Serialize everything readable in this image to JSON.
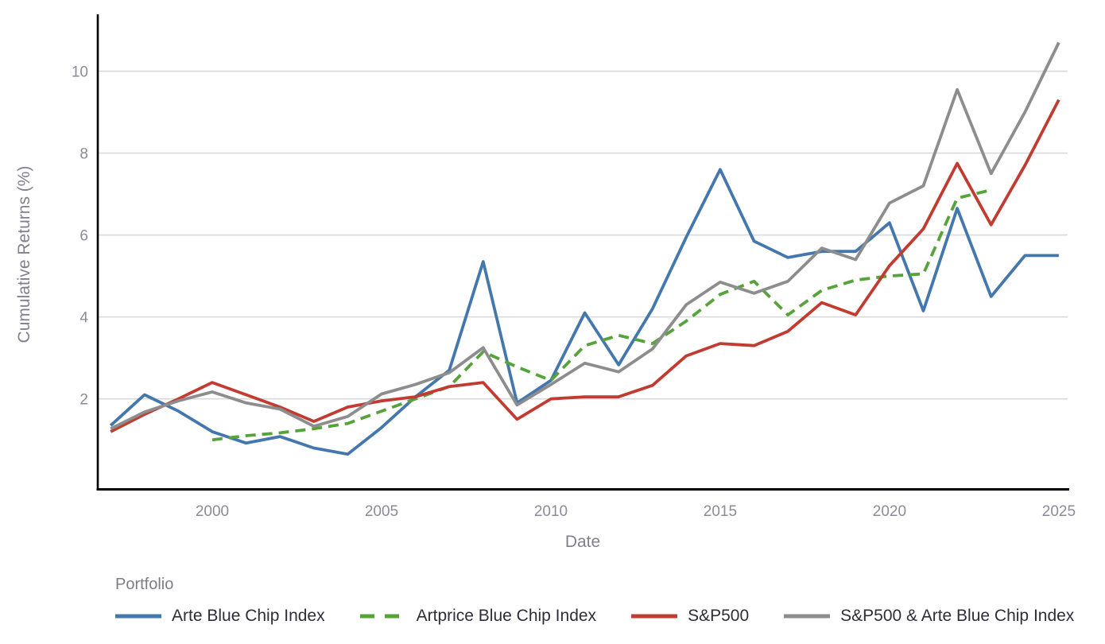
{
  "chart_data": {
    "type": "line",
    "title": "",
    "xlabel": "Date",
    "ylabel": "Cumulative Returns (%)",
    "legend_title": "Portfolio",
    "legend_position": "bottom-left",
    "grid": "horizontal",
    "xlim": [
      1996.62,
      2025.26
    ],
    "ylim": [
      -0.2,
      11.35
    ],
    "x_ticks": [
      2000,
      2005,
      2010,
      2015,
      2020,
      2025
    ],
    "y_ticks": [
      2,
      4,
      6,
      8,
      10
    ],
    "x": [
      1997,
      1998,
      1999,
      2000,
      2001,
      2002,
      2003,
      2004,
      2005,
      2006,
      2007,
      2008,
      2009,
      2010,
      2011,
      2012,
      2013,
      2014,
      2015,
      2016,
      2017,
      2018,
      2019,
      2020,
      2021,
      2022,
      2023,
      2024,
      2025
    ],
    "series": [
      {
        "name": "Arte Blue Chip Index",
        "color": "#4478ad",
        "dash": "solid",
        "values": [
          1.35,
          2.1,
          1.7,
          1.2,
          0.92,
          1.08,
          0.8,
          0.65,
          1.3,
          2.05,
          2.7,
          5.35,
          1.9,
          2.45,
          4.1,
          2.83,
          4.2,
          5.95,
          7.6,
          5.85,
          5.45,
          5.6,
          5.6,
          6.3,
          4.15,
          6.65,
          4.5,
          5.5,
          5.5
        ]
      },
      {
        "name": "Artprice Blue Chip Index",
        "color": "#55a33a",
        "dash": "dashed",
        "values": [
          null,
          null,
          null,
          1.0,
          1.1,
          1.17,
          1.27,
          1.4,
          1.7,
          2.0,
          2.3,
          3.15,
          2.78,
          2.45,
          3.3,
          3.55,
          3.35,
          3.9,
          4.55,
          4.87,
          4.05,
          4.65,
          4.9,
          5.0,
          5.05,
          6.9,
          7.1,
          null,
          null
        ]
      },
      {
        "name": "S&P500",
        "color": "#c23b31",
        "dash": "solid",
        "values": [
          1.2,
          1.62,
          2.0,
          2.4,
          2.1,
          1.8,
          1.45,
          1.8,
          1.95,
          2.05,
          2.3,
          2.4,
          1.5,
          2.0,
          2.05,
          2.05,
          2.33,
          3.05,
          3.35,
          3.3,
          3.65,
          4.35,
          4.05,
          5.25,
          6.15,
          7.75,
          6.25,
          7.7,
          9.3
        ]
      },
      {
        "name": "S&P500 & Arte Blue Chip Index",
        "color": "#8d8d8d",
        "dash": "solid",
        "values": [
          1.27,
          1.68,
          1.95,
          2.17,
          1.9,
          1.75,
          1.33,
          1.57,
          2.12,
          2.35,
          2.64,
          3.25,
          1.85,
          2.35,
          2.87,
          2.66,
          3.22,
          4.3,
          4.85,
          4.58,
          4.87,
          5.68,
          5.4,
          6.78,
          7.2,
          9.55,
          7.5,
          9.0,
          10.7
        ]
      }
    ],
    "colors": {
      "axis_line": "#000000",
      "gridline": "#d9d9d9",
      "tick_label": "#8b8b99",
      "axis_title": "#80808e",
      "legend_text": "#2e2d38"
    }
  }
}
